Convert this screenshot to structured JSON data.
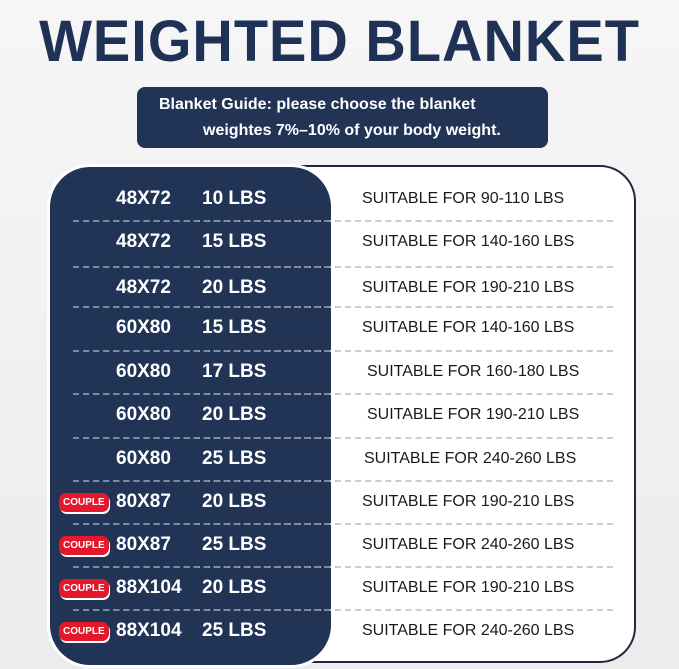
{
  "title": "WEIGHTED BLANKET",
  "guide": {
    "line1": "Blanket Guide: please choose the blanket",
    "line2": "weightes 7%–10% of your body weight."
  },
  "colors": {
    "navy": "#223456",
    "badge": "#e4182c"
  },
  "rows": [
    {
      "badge": "",
      "size": "48X72",
      "weight": "10 LBS",
      "suitable": "SUITABLE FOR 90-110 LBS"
    },
    {
      "badge": "",
      "size": "48X72",
      "weight": "15 LBS",
      "suitable": "SUITABLE FOR 140-160 LBS"
    },
    {
      "badge": "",
      "size": "48X72",
      "weight": "20 LBS",
      "suitable": "SUITABLE FOR 190-210 LBS"
    },
    {
      "badge": "",
      "size": "60X80",
      "weight": "15 LBS",
      "suitable": "SUITABLE FOR 140-160 LBS"
    },
    {
      "badge": "",
      "size": "60X80",
      "weight": "17 LBS",
      "suitable": "SUITABLE FOR 160-180 LBS"
    },
    {
      "badge": "",
      "size": "60X80",
      "weight": "20 LBS",
      "suitable": "SUITABLE FOR 190-210 LBS"
    },
    {
      "badge": "",
      "size": "60X80",
      "weight": "25 LBS",
      "suitable": "SUITABLE FOR 240-260 LBS"
    },
    {
      "badge": "COUPLE",
      "size": "80X87",
      "weight": "20 LBS",
      "suitable": "SUITABLE FOR 190-210 LBS"
    },
    {
      "badge": "COUPLE",
      "size": "80X87",
      "weight": "25 LBS",
      "suitable": "SUITABLE FOR 240-260 LBS"
    },
    {
      "badge": "COUPLE",
      "size": "88X104",
      "weight": "20 LBS",
      "suitable": "SUITABLE FOR 190-210 LBS"
    },
    {
      "badge": "COUPLE",
      "size": "88X104",
      "weight": "25 LBS",
      "suitable": "SUITABLE FOR 240-260 LBS"
    }
  ]
}
